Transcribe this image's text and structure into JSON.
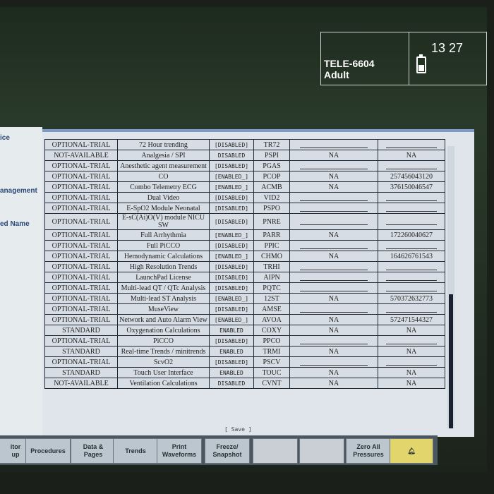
{
  "header": {
    "bed": "TELE-6604",
    "patient_type": "Adult",
    "time": "13 27",
    "battery_icon": "battery-icon"
  },
  "sidebar": {
    "items": [
      "ice",
      "anagement",
      "ed Name"
    ]
  },
  "table": {
    "rows": [
      [
        "OPTIONAL-TRIAL",
        "72 Hour trending",
        "[DISABLED]",
        "TR72",
        "",
        ""
      ],
      [
        "NOT-AVAILABLE",
        "Analgesia / SPI",
        "DISABLED",
        "PSPI",
        "NA",
        "NA"
      ],
      [
        "OPTIONAL-TRIAL",
        "Anesthetic agent measurement",
        "[DISABLED]",
        "PGAS",
        "",
        ""
      ],
      [
        "OPTIONAL-TRIAL",
        "CO",
        "[ENABLED_]",
        "PCOP",
        "NA",
        "257456043120"
      ],
      [
        "OPTIONAL-TRIAL",
        "Combo Telemetry ECG",
        "[ENABLED_]",
        "ACMB",
        "NA",
        "376150046547"
      ],
      [
        "OPTIONAL-TRIAL",
        "Dual Video",
        "[DISABLED]",
        "VID2",
        "",
        ""
      ],
      [
        "OPTIONAL-TRIAL",
        "E-SpO2 Module Neonatal",
        "[DISABLED]",
        "PSPO",
        "",
        ""
      ],
      [
        "OPTIONAL-TRIAL",
        "E-sC(Ai)O(V) module NICU SW",
        "[DISABLED]",
        "PNRE",
        "",
        ""
      ],
      [
        "OPTIONAL-TRIAL",
        "Full Arrhythmia",
        "[ENABLED_]",
        "PARR",
        "NA",
        "172260040627"
      ],
      [
        "OPTIONAL-TRIAL",
        "Full PiCCO",
        "[DISABLED]",
        "PPIC",
        "",
        ""
      ],
      [
        "OPTIONAL-TRIAL",
        "Hemodynamic Calculations",
        "[ENABLED_]",
        "CHMO",
        "NA",
        "164626761543"
      ],
      [
        "OPTIONAL-TRIAL",
        "High Resolution Trends",
        "[DISABLED]",
        "TRHI",
        "",
        ""
      ],
      [
        "OPTIONAL-TRIAL",
        "LaunchPad License",
        "[DISABLED]",
        "AIPN",
        "",
        ""
      ],
      [
        "OPTIONAL-TRIAL",
        "Multi-lead QT / QTc Analysis",
        "[DISABLED]",
        "PQTC",
        "",
        ""
      ],
      [
        "OPTIONAL-TRIAL",
        "Multi-lead ST Analysis",
        "[ENABLED_]",
        "12ST",
        "NA",
        "570372632773"
      ],
      [
        "OPTIONAL-TRIAL",
        "MuseView",
        "[DISABLED]",
        "AMSE",
        "",
        ""
      ],
      [
        "OPTIONAL-TRIAL",
        "Network and Auto Alarm View",
        "[ENABLED_]",
        "AVOA",
        "NA",
        "572471544327"
      ],
      [
        "STANDARD",
        "Oxygenation Calculations",
        "ENABLED",
        "COXY",
        "NA",
        "NA"
      ],
      [
        "OPTIONAL-TRIAL",
        "PiCCO",
        "[DISABLED]",
        "PPCO",
        "",
        ""
      ],
      [
        "STANDARD",
        "Real-time Trends / minitrends",
        "ENABLED",
        "TRMI",
        "NA",
        "NA"
      ],
      [
        "OPTIONAL-TRIAL",
        "ScvO2",
        "[DISABLED]",
        "PSCV",
        "",
        ""
      ],
      [
        "STANDARD",
        "Touch User Interface",
        "ENABLED",
        "TOUC",
        "NA",
        "NA"
      ],
      [
        "NOT-AVAILABLE",
        "Ventilation Calculations",
        "DISABLED",
        "CVNT",
        "NA",
        "NA"
      ]
    ],
    "save_label": "[ Save ]"
  },
  "toolbar": {
    "buttons": [
      "itor\nup",
      "Procedures",
      "Data &\nPages",
      "Trends",
      "Print\nWaveforms",
      "Freeze/\nSnapshot",
      "",
      "",
      "Zero All\nPressures"
    ],
    "alarm_icon": "bell-icon"
  }
}
